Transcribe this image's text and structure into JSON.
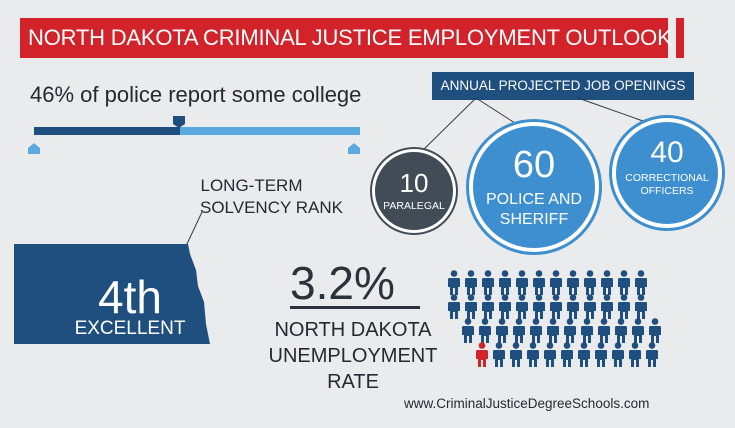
{
  "header": {
    "title": "NORTH DAKOTA CRIMINAL JUSTICE EMPLOYMENT OUTLOOK",
    "accent_color": "#d2232a"
  },
  "education": {
    "text": "46% of police report some college",
    "percent": 46
  },
  "job_openings": {
    "title": "ANNUAL PROJECTED JOB OPENINGS",
    "paralegal": {
      "number": "10",
      "label": "PARALEGAL"
    },
    "police": {
      "number": "60",
      "label_line1": "POLICE AND",
      "label_line2": "SHERIFF"
    },
    "corrections": {
      "number": "40",
      "label_line1": "CORRECTIONAL",
      "label_line2": "OFFICERS"
    }
  },
  "solvency": {
    "label_line1": "LONG-TERM",
    "label_line2": "SOLVENCY RANK",
    "rank": "4th",
    "rating": "EXCELLENT"
  },
  "unemployment": {
    "value": "3.2%",
    "label_line1": "NORTH DAKOTA",
    "label_line2": "UNEMPLOYMENT",
    "label_line3": "RATE"
  },
  "footer": {
    "url": "www.CriminalJusticeDegreeSchools.com"
  },
  "colors": {
    "dark_blue": "#1e4f7e",
    "light_blue": "#5aaae0",
    "circle_blue": "#3d8fd0",
    "circle_gray": "#414c57",
    "highlight_red": "#d2232a"
  }
}
